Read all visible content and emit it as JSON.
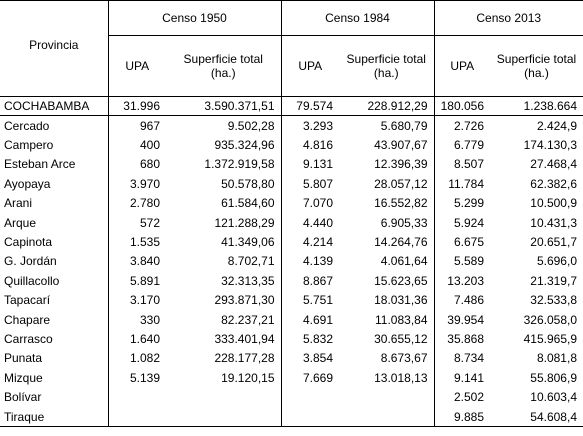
{
  "header": {
    "provincia": "Provincia",
    "censo1950": "Censo 1950",
    "censo1984": "Censo 1984",
    "censo2013": "Censo 2013",
    "upa": "UPA",
    "superficie_1950": "Superficie total (ha.)",
    "superficie_1984": "Superficie total (ha.)",
    "superficie_2013": "Superficie total (ha.)"
  },
  "total": [
    "COCHABAMBA",
    "31.996",
    "3.590.371,51",
    "79.574",
    "228.912,29",
    "180.056",
    "1.238.664"
  ],
  "rows": [
    [
      "Cercado",
      "967",
      "9.502,28",
      "3.293",
      "5.680,79",
      "2.726",
      "2.424,9"
    ],
    [
      "Campero",
      "400",
      "935.324,96",
      "4.816",
      "43.907,67",
      "6.779",
      "174.130,3"
    ],
    [
      "Esteban Arce",
      "680",
      "1.372.919,58",
      "9.131",
      "12.396,39",
      "8.507",
      "27.468,4"
    ],
    [
      "Ayopaya",
      "3.970",
      "50.578,80",
      "5.807",
      "28.057,12",
      "11.784",
      "62.382,6"
    ],
    [
      "Arani",
      "2.780",
      "61.584,60",
      "7.070",
      "16.552,82",
      "5.299",
      "10.500,9"
    ],
    [
      "Arque",
      "572",
      "121.288,29",
      "4.440",
      "6.905,33",
      "5.924",
      "10.431,3"
    ],
    [
      "Capinota",
      "1.535",
      "41.349,06",
      "4.214",
      "14.264,76",
      "6.675",
      "20.651,7"
    ],
    [
      "G. Jordán",
      "3.840",
      "8.702,71",
      "4.139",
      "4.061,64",
      "5.589",
      "5.696,0"
    ],
    [
      "Quillacollo",
      "5.891",
      "32.313,35",
      "8.867",
      "15.623,65",
      "13.203",
      "21.319,7"
    ],
    [
      "Tapacarí",
      "3.170",
      "293.871,30",
      "5.751",
      "18.031,36",
      "7.486",
      "32.533,8"
    ],
    [
      "Chapare",
      "330",
      "82.237,21",
      "4.691",
      "11.083,84",
      "39.954",
      "326.058,0"
    ],
    [
      "Carrasco",
      "1.640",
      "333.401,94",
      "5.832",
      "30.655,12",
      "35.868",
      "415.965,9"
    ],
    [
      "Punata",
      "1.082",
      "228.177,28",
      "3.854",
      "8.673,67",
      "8.734",
      "8.081,8"
    ],
    [
      "Mizque",
      "5.139",
      "19.120,15",
      "7.669",
      "13.018,13",
      "9.141",
      "55.806,9"
    ],
    [
      "Bolívar",
      "",
      "",
      "",
      "",
      "2.502",
      "10.603,4"
    ],
    [
      "Tiraque",
      "",
      "",
      "",
      "",
      "9.885",
      "54.608,4"
    ]
  ]
}
